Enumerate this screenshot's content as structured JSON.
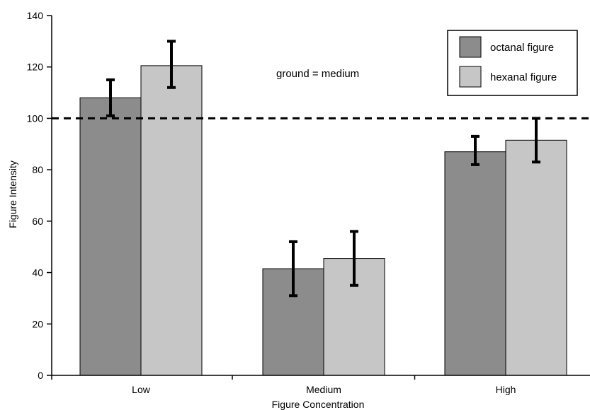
{
  "chart_data": {
    "type": "bar",
    "categories": [
      "Low",
      "Medium",
      "High"
    ],
    "series": [
      {
        "name": "octanal figure",
        "color": "#8c8c8c",
        "values": [
          108,
          41.5,
          87
        ],
        "error_low": [
          101,
          31,
          82
        ],
        "error_high": [
          115,
          52,
          93
        ]
      },
      {
        "name": "hexanal figure",
        "color": "#c6c6c6",
        "values": [
          120.5,
          45.5,
          91.5
        ],
        "error_low": [
          112,
          35,
          83
        ],
        "error_high": [
          130,
          56,
          100
        ]
      }
    ],
    "xlabel": "Figure Concentration",
    "ylabel": "Figure  Intensity",
    "ylim": [
      0,
      140
    ],
    "yticks": [
      0,
      20,
      40,
      60,
      80,
      100,
      120,
      140
    ],
    "reference_line": {
      "y": 100,
      "style": "dashed"
    },
    "annotation": "ground = medium",
    "legend_position": "top-right",
    "grid": false
  }
}
